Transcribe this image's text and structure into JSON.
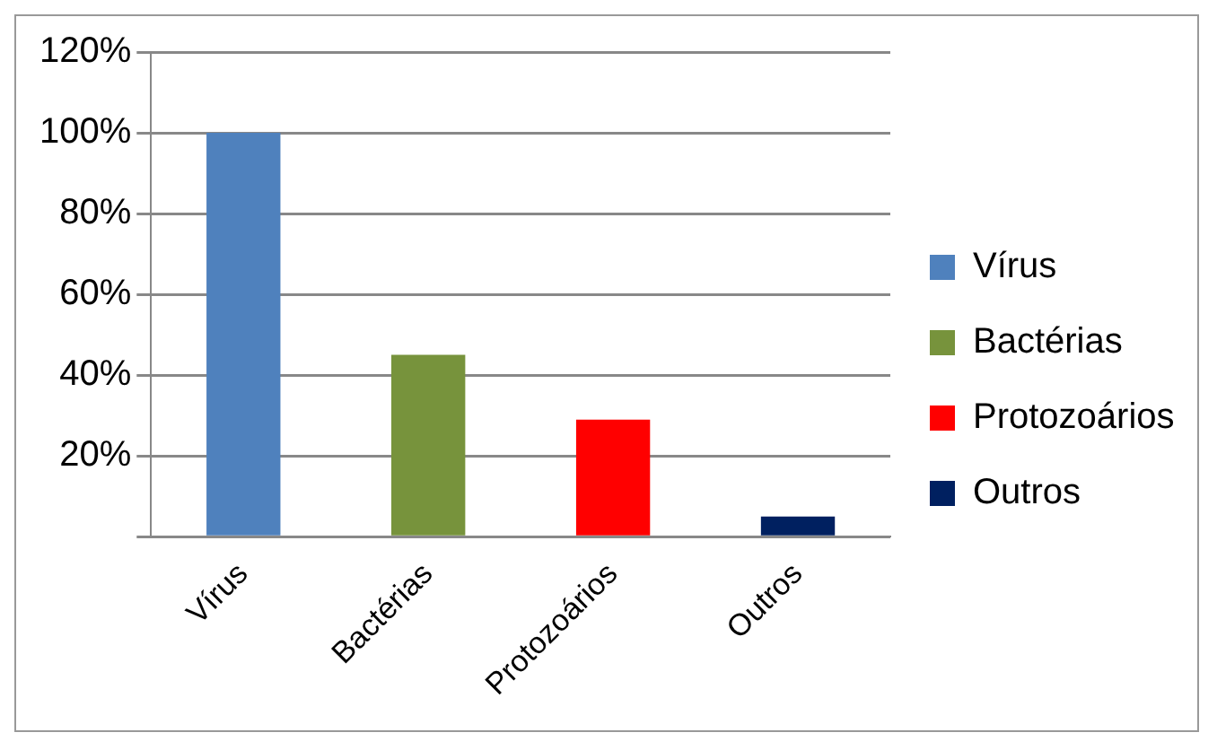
{
  "chart_data": {
    "type": "bar",
    "categories": [
      "Vírus",
      "Bactérias",
      "Protozoários",
      "Outros"
    ],
    "series": [
      {
        "name": "Vírus",
        "color": "#4f81bd",
        "values": [
          100,
          null,
          null,
          null
        ]
      },
      {
        "name": "Bactérias",
        "color": "#77933c",
        "values": [
          null,
          45,
          null,
          null
        ]
      },
      {
        "name": "Protozoários",
        "color": "#ff0000",
        "values": [
          null,
          null,
          29,
          null
        ]
      },
      {
        "name": "Outros",
        "color": "#002060",
        "values": [
          null,
          null,
          null,
          5
        ]
      }
    ],
    "ylim": [
      0,
      120
    ],
    "yticks": [
      {
        "value": 0,
        "label": null
      },
      {
        "value": 20,
        "label": "20%"
      },
      {
        "value": 40,
        "label": "40%"
      },
      {
        "value": 60,
        "label": "60%"
      },
      {
        "value": 80,
        "label": "80%"
      },
      {
        "value": 100,
        "label": "100%"
      },
      {
        "value": 120,
        "label": "120%"
      }
    ],
    "grid": "y",
    "legend": "right"
  }
}
